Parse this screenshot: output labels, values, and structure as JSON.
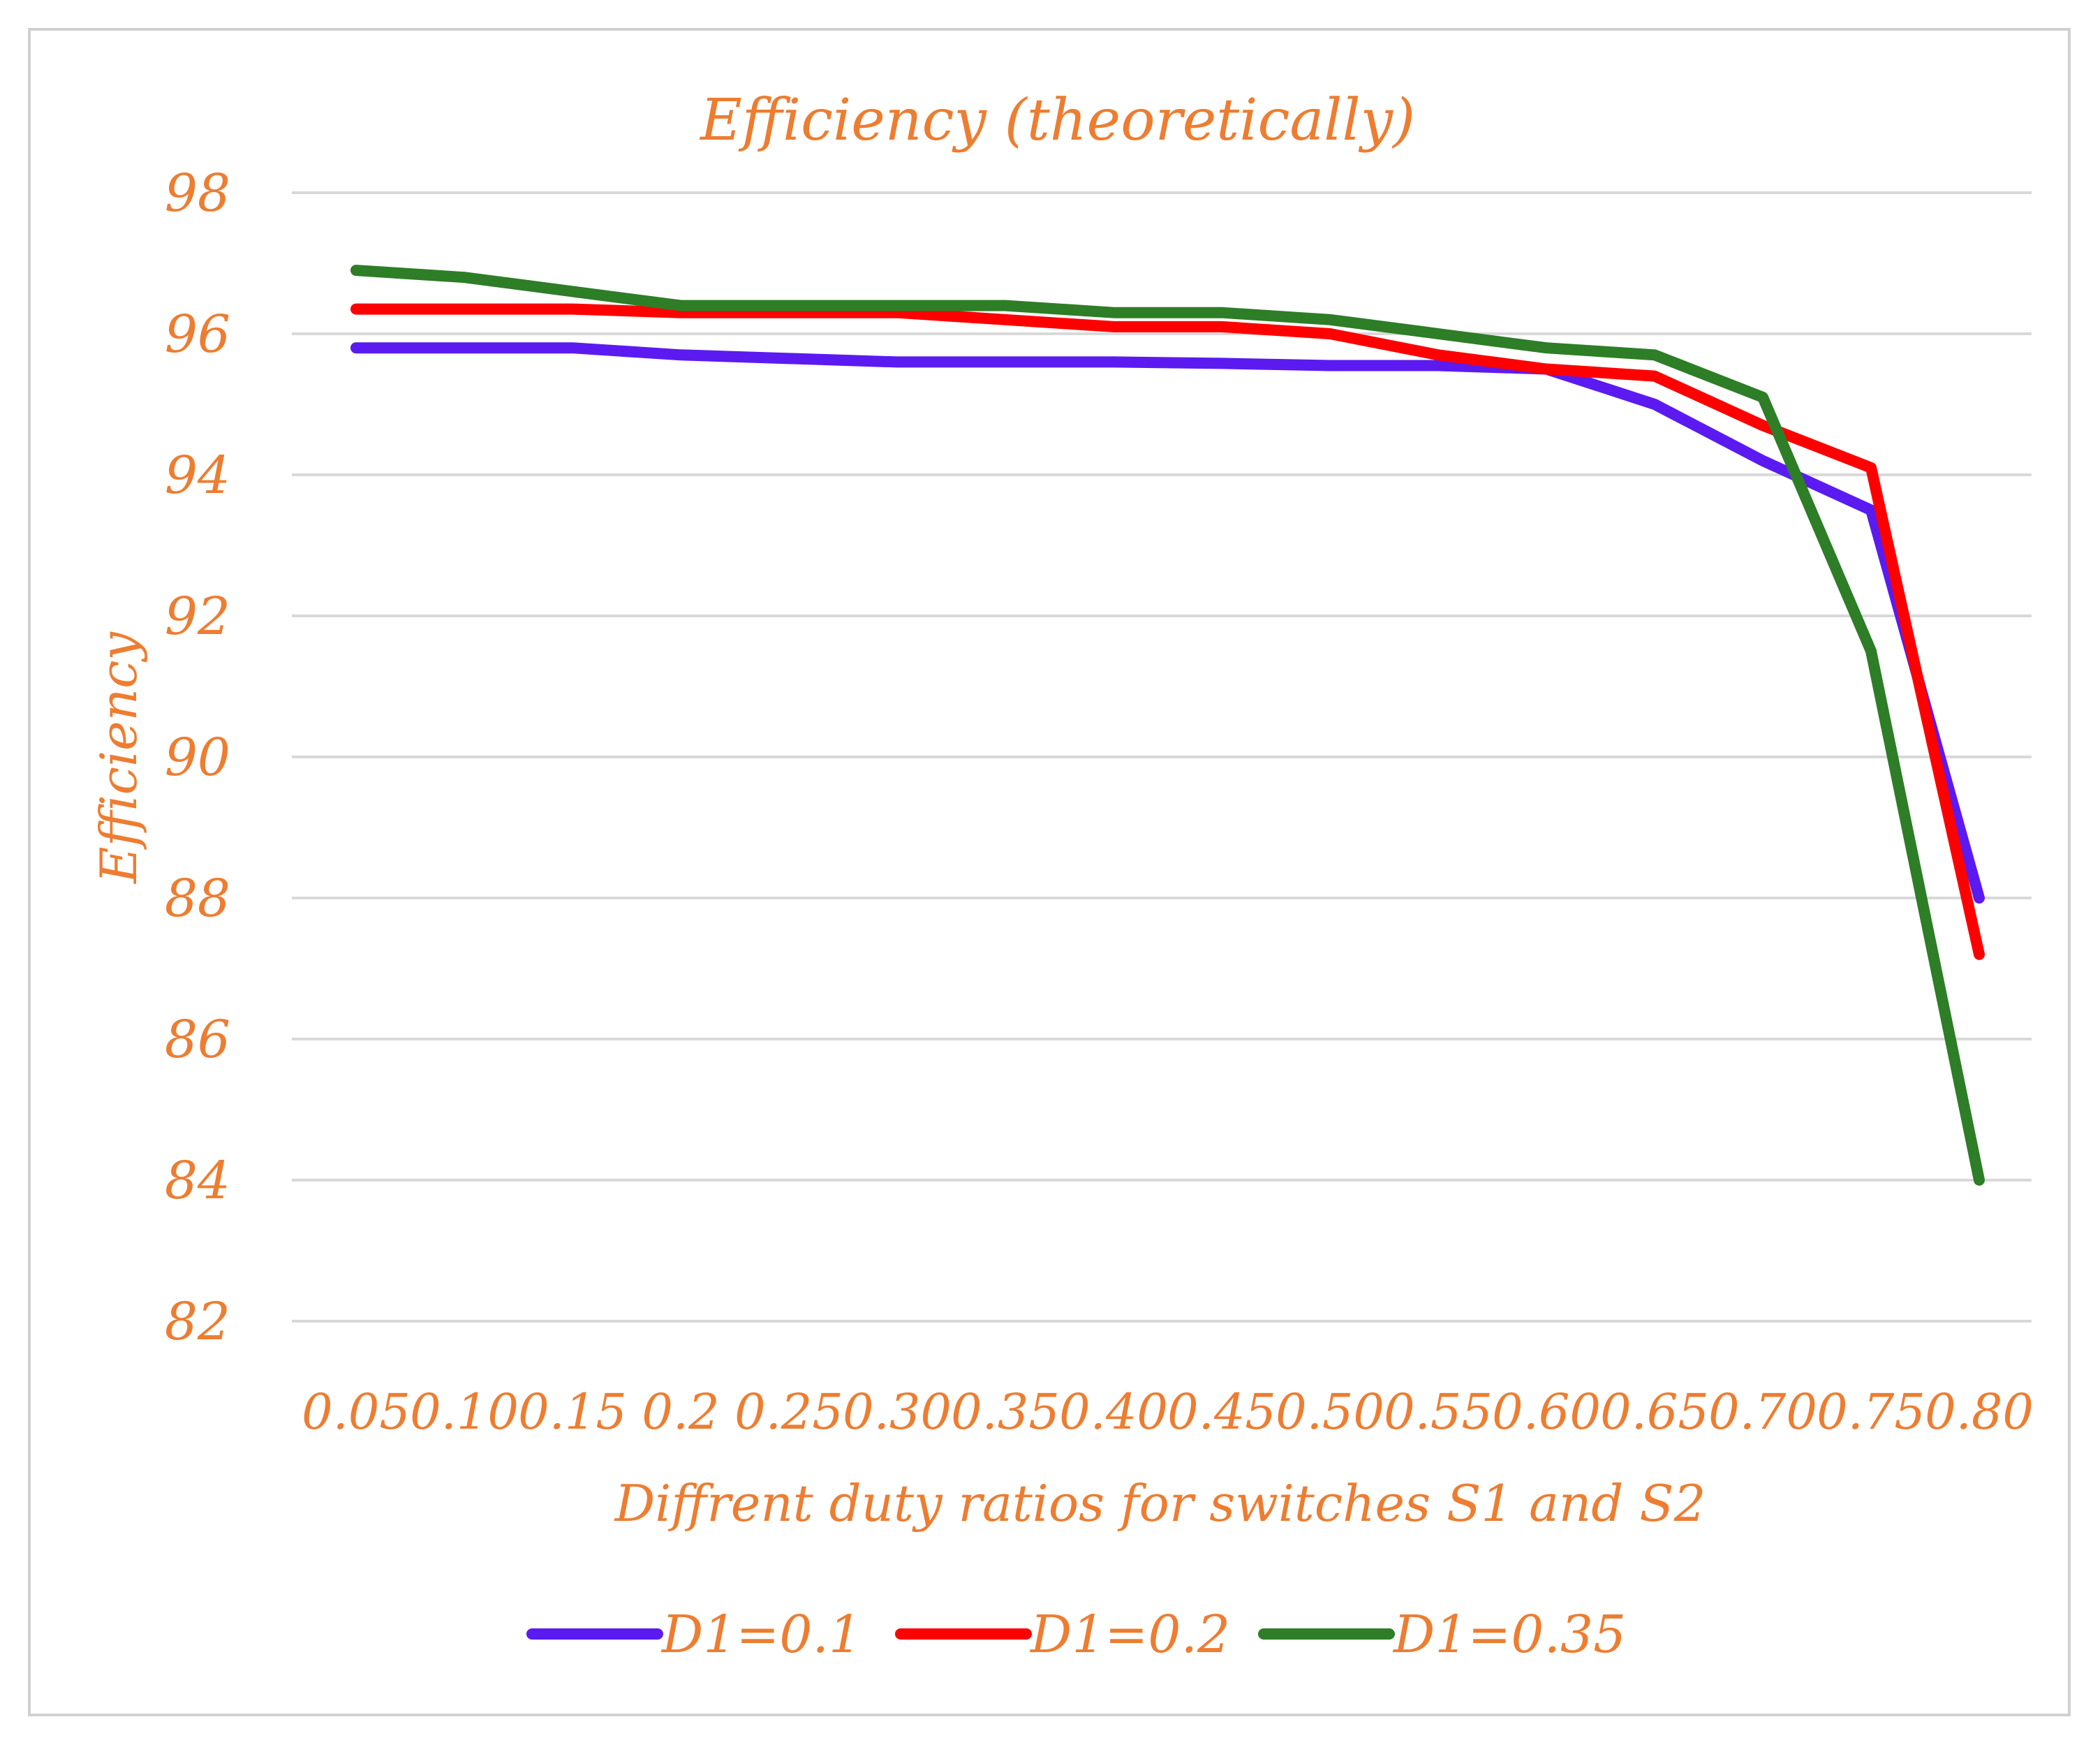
{
  "chart_data": {
    "type": "line",
    "title": "Efficiency (theoretically)",
    "xlabel": "Diffrent duty ratios for switches S1 and S2",
    "ylabel": "Efficiency",
    "categories": [
      "0.05",
      "0.10",
      "0.15",
      "0.2",
      "0.25",
      "0.30",
      "0.35",
      "0.40",
      "0.45",
      "0.50",
      "0.55",
      "0.60",
      "0.65",
      "0.70",
      "0.75",
      "0.80"
    ],
    "ylim": [
      82,
      98
    ],
    "yticks": [
      "82",
      "84",
      "86",
      "88",
      "90",
      "92",
      "94",
      "96",
      "98"
    ],
    "grid": true,
    "legend_position": "bottom",
    "series": [
      {
        "name": "D1=0.1",
        "color": "#5b1bf0",
        "values": [
          95.8,
          95.8,
          95.8,
          95.7,
          95.65,
          95.6,
          95.6,
          95.6,
          95.58,
          95.55,
          95.55,
          95.5,
          95.0,
          94.2,
          93.5,
          88.0
        ]
      },
      {
        "name": "D1=0.2",
        "color": "#ff0000",
        "values": [
          96.35,
          96.35,
          96.35,
          96.3,
          96.3,
          96.3,
          96.2,
          96.1,
          96.1,
          96.0,
          95.7,
          95.5,
          95.4,
          94.7,
          94.1,
          87.2
        ]
      },
      {
        "name": "D1=0.35",
        "color": "#2e7d27",
        "values": [
          96.9,
          96.8,
          96.6,
          96.4,
          96.4,
          96.4,
          96.4,
          96.3,
          96.3,
          96.2,
          96.0,
          95.8,
          95.7,
          95.1,
          91.5,
          84.0
        ]
      }
    ]
  },
  "colors": {
    "text": "#ed7d31",
    "grid": "#d9d9d9",
    "frame": "#d0d0d0"
  }
}
